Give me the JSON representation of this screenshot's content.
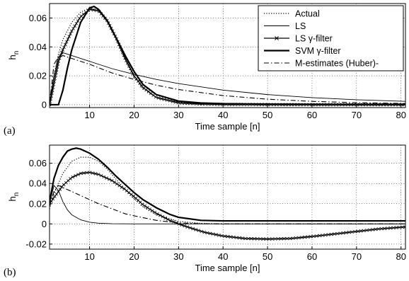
{
  "chart_data": [
    {
      "panel": "(a)",
      "type": "line",
      "xlabel": "Time sample [n]",
      "ylabel_main": "h",
      "ylabel_sub": "n",
      "xlim": [
        1,
        81
      ],
      "ylim": [
        -0.002,
        0.07
      ],
      "xticks": [
        10,
        20,
        30,
        40,
        50,
        60,
        70,
        80
      ],
      "yticks": [
        0,
        0.02,
        0.04,
        0.06
      ],
      "ytick_labels": [
        "0",
        "0.02",
        "0.04",
        "0.06"
      ],
      "grid": true,
      "legend_position": "top-right",
      "series": [
        {
          "name": "Actual",
          "style": "dotted",
          "x": [
            1,
            2,
            3,
            4,
            6,
            8,
            10,
            12,
            14,
            16,
            18,
            20,
            22,
            25,
            30,
            35,
            40,
            50,
            60,
            70,
            81
          ],
          "y": [
            0,
            0.02,
            0.035,
            0.045,
            0.057,
            0.064,
            0.067,
            0.065,
            0.057,
            0.045,
            0.031,
            0.019,
            0.011,
            0.005,
            0.0017,
            0.0008,
            0.0004,
            0.0002,
            0.0001,
            0.0001,
            0.0001
          ]
        },
        {
          "name": "LS",
          "style": "thin",
          "x": [
            1,
            2,
            3,
            4,
            5,
            10,
            15,
            20,
            25,
            30,
            40,
            50,
            60,
            70,
            81
          ],
          "y": [
            0,
            0.02,
            0.033,
            0.036,
            0.035,
            0.03,
            0.025,
            0.021,
            0.0175,
            0.0146,
            0.0101,
            0.007,
            0.0049,
            0.0034,
            0.0023
          ]
        },
        {
          "name": "LS γ-filter",
          "style": "cross",
          "x": [
            1,
            2,
            3,
            4,
            6,
            8,
            10,
            12,
            14,
            16,
            18,
            20,
            22,
            25,
            30,
            35,
            40,
            50,
            60,
            70,
            81
          ],
          "y": [
            0,
            0.015,
            0.03,
            0.038,
            0.051,
            0.061,
            0.066,
            0.065,
            0.058,
            0.046,
            0.032,
            0.02,
            0.012,
            0.005,
            0.0013,
            0.0005,
            0.0002,
            0.0001,
            0,
            0,
            0
          ]
        },
        {
          "name": "SVM γ-filter",
          "style": "thick",
          "x": [
            1,
            2,
            3,
            4,
            5,
            6,
            8,
            10,
            11,
            12,
            14,
            16,
            18,
            20,
            22,
            25,
            30,
            35,
            40,
            50,
            60,
            70,
            81
          ],
          "y": [
            0,
            0,
            0,
            0.01,
            0.025,
            0.038,
            0.057,
            0.067,
            0.068,
            0.066,
            0.058,
            0.046,
            0.034,
            0.023,
            0.014,
            0.007,
            0.0025,
            0.0012,
            0.0007,
            0.0004,
            0.0003,
            0.0002,
            0.0002
          ]
        },
        {
          "name": "M-estimates (Huber)-",
          "style": "dashdot",
          "x": [
            1,
            2,
            3,
            4,
            5,
            10,
            15,
            20,
            25,
            30,
            40,
            50,
            60,
            70,
            81
          ],
          "y": [
            0,
            0.028,
            0.033,
            0.034,
            0.033,
            0.028,
            0.022,
            0.0175,
            0.0135,
            0.0105,
            0.0063,
            0.0038,
            0.0023,
            0.0014,
            0.0008
          ]
        }
      ]
    },
    {
      "panel": "(b)",
      "type": "line",
      "xlabel": "Time sample [n]",
      "ylabel_main": "h",
      "ylabel_sub": "n",
      "xlim": [
        1,
        81
      ],
      "ylim": [
        -0.025,
        0.078
      ],
      "xticks": [
        10,
        20,
        30,
        40,
        50,
        60,
        70,
        80
      ],
      "yticks": [
        -0.02,
        0,
        0.02,
        0.04,
        0.06
      ],
      "ytick_labels": [
        "-0.02",
        "0",
        "0.02",
        "0.04",
        "0.06"
      ],
      "grid": true,
      "series": [
        {
          "name": "Actual",
          "style": "dotted",
          "x": [
            1,
            2,
            4,
            6,
            8,
            10,
            12,
            14,
            16,
            18,
            20,
            22,
            25,
            30,
            35,
            40,
            50,
            60,
            70,
            81
          ],
          "y": [
            0.015,
            0.03,
            0.05,
            0.062,
            0.066,
            0.066,
            0.062,
            0.054,
            0.044,
            0.034,
            0.025,
            0.017,
            0.009,
            0.0025,
            0.0005,
            0,
            0,
            0,
            0,
            0
          ]
        },
        {
          "name": "LS",
          "style": "thin",
          "x": [
            1,
            2,
            3,
            4,
            5,
            6,
            8,
            10,
            12,
            15,
            20,
            30,
            40,
            81
          ],
          "y": [
            0.02,
            0.038,
            0.033,
            0.022,
            0.014,
            0.009,
            0.004,
            0.0017,
            0.0007,
            0.0002,
            0,
            0,
            0,
            0
          ]
        },
        {
          "name": "LS γ-filter",
          "style": "cross",
          "x": [
            1,
            2,
            4,
            6,
            8,
            10,
            12,
            15,
            18,
            20,
            22,
            25,
            28,
            30,
            33,
            36,
            40,
            45,
            50,
            55,
            60,
            65,
            70,
            75,
            81
          ],
          "y": [
            0.02,
            0.026,
            0.038,
            0.046,
            0.05,
            0.051,
            0.049,
            0.043,
            0.034,
            0.027,
            0.019,
            0.0105,
            0.0035,
            0,
            -0.0045,
            -0.0085,
            -0.012,
            -0.0145,
            -0.015,
            -0.0145,
            -0.0125,
            -0.01,
            -0.0075,
            -0.005,
            -0.003
          ]
        },
        {
          "name": "SVM γ-filter",
          "style": "thick",
          "x": [
            1,
            2,
            3,
            4,
            5,
            6,
            7,
            8,
            10,
            12,
            14,
            16,
            18,
            20,
            22,
            25,
            28,
            30,
            35,
            40,
            50,
            60,
            70,
            81
          ],
          "y": [
            0.022,
            0.045,
            0.058,
            0.066,
            0.072,
            0.074,
            0.075,
            0.074,
            0.07,
            0.064,
            0.056,
            0.047,
            0.039,
            0.031,
            0.024,
            0.016,
            0.0095,
            0.0065,
            0.0035,
            0.003,
            0.003,
            0.003,
            0.003,
            0.003
          ]
        },
        {
          "name": "M-estimates (Huber)-",
          "style": "dashdot",
          "x": [
            1,
            2,
            3,
            4,
            6,
            8,
            10,
            12,
            15,
            18,
            20,
            25,
            30,
            35,
            40,
            81
          ],
          "y": [
            0.018,
            0.032,
            0.038,
            0.036,
            0.032,
            0.028,
            0.024,
            0.02,
            0.015,
            0.01,
            0.008,
            0.0035,
            0.001,
            0.0002,
            0,
            0
          ]
        }
      ]
    }
  ]
}
